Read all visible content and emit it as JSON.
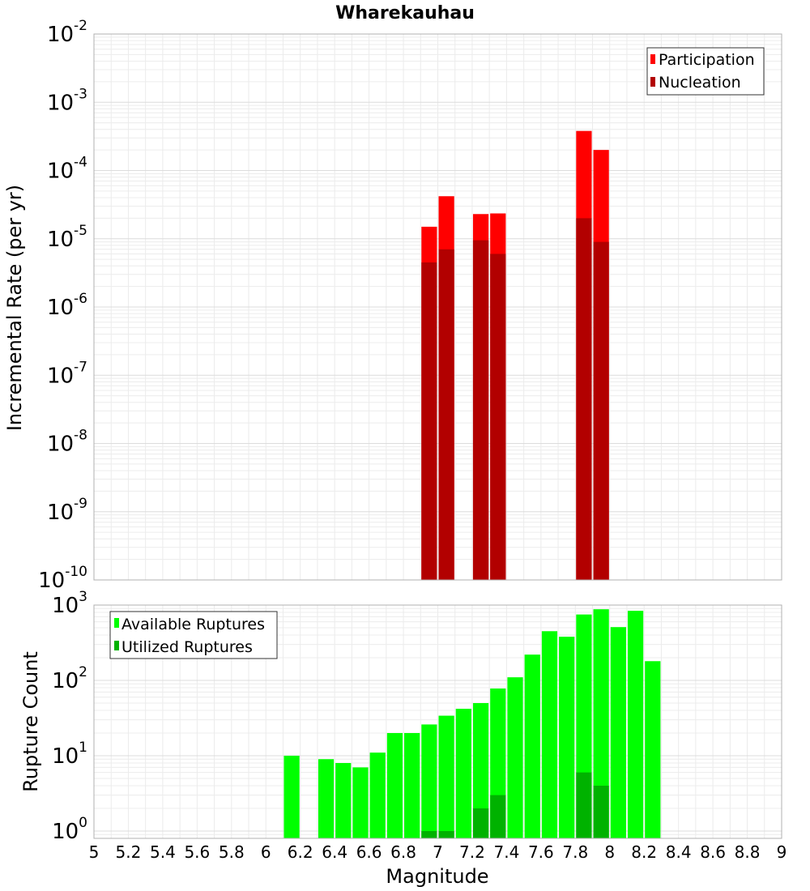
{
  "chart_data": [
    {
      "type": "bar",
      "title": "Wharekauhau",
      "xlabel": "",
      "ylabel": "Incremental Rate (per yr)",
      "yscale": "log",
      "ylim": [
        1e-10,
        0.01
      ],
      "xlim": [
        5,
        9
      ],
      "grid": true,
      "legend_placement": "top-right",
      "legend": [
        "Participation",
        "Nucleation"
      ],
      "colors": {
        "Participation": "#ff0000",
        "Nucleation": "#b20000"
      },
      "y_ticks": [
        {
          "base": "10",
          "exp": "-10"
        },
        {
          "base": "10",
          "exp": "-9"
        },
        {
          "base": "10",
          "exp": "-8"
        },
        {
          "base": "10",
          "exp": "-7"
        },
        {
          "base": "10",
          "exp": "-6"
        },
        {
          "base": "10",
          "exp": "-5"
        },
        {
          "base": "10",
          "exp": "-4"
        },
        {
          "base": "10",
          "exp": "-3"
        },
        {
          "base": "10",
          "exp": "-2"
        }
      ],
      "series": [
        {
          "name": "Participation",
          "x": [
            6.95,
            7.05,
            7.25,
            7.35,
            7.85,
            7.95
          ],
          "values": [
            1.5e-05,
            4.2e-05,
            2.3e-05,
            2.35e-05,
            0.00038,
            0.0002
          ]
        },
        {
          "name": "Nucleation",
          "x": [
            6.95,
            7.05,
            7.25,
            7.35,
            7.85,
            7.95
          ],
          "values": [
            4.5e-06,
            7e-06,
            9.5e-06,
            6e-06,
            2e-05,
            9e-06
          ]
        }
      ]
    },
    {
      "type": "bar",
      "title": "",
      "xlabel": "Magnitude",
      "ylabel": "Rupture Count",
      "yscale": "log",
      "ylim": [
        0.8,
        1000
      ],
      "xlim": [
        5,
        9
      ],
      "grid": true,
      "legend_placement": "top-left",
      "legend": [
        "Available Ruptures",
        "Utilized Ruptures"
      ],
      "colors": {
        "Available Ruptures": "#00ff00",
        "Utilized Ruptures": "#00b200"
      },
      "x_ticks": [
        "5",
        "5.2",
        "5.4",
        "5.6",
        "5.8",
        "6",
        "6.2",
        "6.4",
        "6.6",
        "6.8",
        "7",
        "7.2",
        "7.4",
        "7.6",
        "7.8",
        "8",
        "8.2",
        "8.4",
        "8.6",
        "8.8",
        "9"
      ],
      "y_ticks": [
        {
          "base": "10",
          "exp": "0"
        },
        {
          "base": "10",
          "exp": "1"
        },
        {
          "base": "10",
          "exp": "2"
        },
        {
          "base": "10",
          "exp": "3"
        }
      ],
      "series": [
        {
          "name": "Available Ruptures",
          "x": [
            6.15,
            6.35,
            6.45,
            6.55,
            6.65,
            6.75,
            6.85,
            6.95,
            7.05,
            7.15,
            7.25,
            7.35,
            7.45,
            7.55,
            7.65,
            7.75,
            7.85,
            7.95,
            8.05,
            8.15,
            8.25
          ],
          "values": [
            10,
            9,
            8,
            7,
            11,
            20,
            20,
            26,
            34,
            42,
            50,
            78,
            110,
            220,
            450,
            380,
            750,
            880,
            510,
            840,
            180
          ]
        },
        {
          "name": "Utilized Ruptures",
          "x": [
            6.95,
            7.05,
            7.25,
            7.35,
            7.85,
            7.95
          ],
          "values": [
            1,
            1,
            2,
            3,
            6,
            4
          ]
        }
      ]
    }
  ]
}
